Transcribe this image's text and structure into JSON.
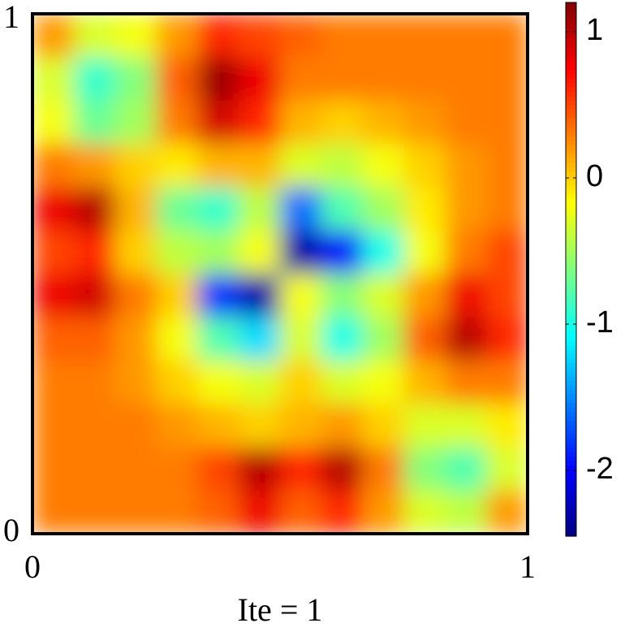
{
  "chart_data": {
    "type": "heatmap",
    "xlabel": "Ite = 1",
    "colormap": "jet",
    "xlim": [
      0,
      1
    ],
    "ylim": [
      0,
      1
    ],
    "xticks": [
      0,
      1
    ],
    "yticks": [
      0,
      1
    ],
    "clim": [
      -2.45,
      1.2
    ],
    "cticks": [
      1,
      0,
      -1,
      -2
    ],
    "z": [
      [
        0.2,
        -0.3,
        -0.2,
        0.2,
        0.6,
        0.5,
        0.4,
        0.3,
        0.3,
        0.3,
        0.3,
        0.3
      ],
      [
        -0.3,
        -0.9,
        -0.6,
        0.4,
        1.1,
        0.8,
        0.3,
        0.3,
        0.3,
        0.3,
        0.3,
        0.3
      ],
      [
        -0.2,
        -0.7,
        -0.5,
        0.3,
        0.9,
        0.6,
        0.1,
        0.0,
        0.1,
        0.2,
        0.3,
        0.3
      ],
      [
        0.3,
        0.2,
        0.0,
        -0.1,
        0.1,
        0.1,
        -0.3,
        -0.4,
        -0.2,
        0.0,
        0.2,
        0.3
      ],
      [
        0.8,
        1.0,
        0.1,
        -0.7,
        -0.9,
        -0.4,
        -1.6,
        -0.8,
        -0.5,
        -0.1,
        0.2,
        0.3
      ],
      [
        0.5,
        0.6,
        0.0,
        -0.4,
        -0.5,
        -0.2,
        -2.3,
        -2.0,
        -1.0,
        -0.2,
        0.3,
        0.5
      ],
      [
        0.8,
        0.9,
        0.3,
        0.0,
        -1.8,
        -2.3,
        -0.2,
        -0.6,
        -0.3,
        0.2,
        0.8,
        0.5
      ],
      [
        0.4,
        0.4,
        0.2,
        -0.2,
        -0.8,
        -1.2,
        -0.3,
        -1.0,
        -0.5,
        0.4,
        1.0,
        0.6
      ],
      [
        0.3,
        0.3,
        0.2,
        0.0,
        -0.2,
        -0.3,
        0.0,
        -0.3,
        -0.2,
        0.1,
        0.3,
        0.3
      ],
      [
        0.3,
        0.3,
        0.3,
        0.2,
        0.1,
        0.0,
        0.1,
        0.2,
        0.0,
        -0.3,
        -0.3,
        -0.1
      ],
      [
        0.3,
        0.3,
        0.3,
        0.3,
        0.5,
        1.0,
        0.6,
        1.0,
        0.3,
        -0.6,
        -0.8,
        -0.3
      ],
      [
        0.3,
        0.3,
        0.3,
        0.3,
        0.4,
        0.8,
        0.4,
        0.6,
        0.2,
        -0.3,
        -0.4,
        0.2
      ]
    ]
  }
}
